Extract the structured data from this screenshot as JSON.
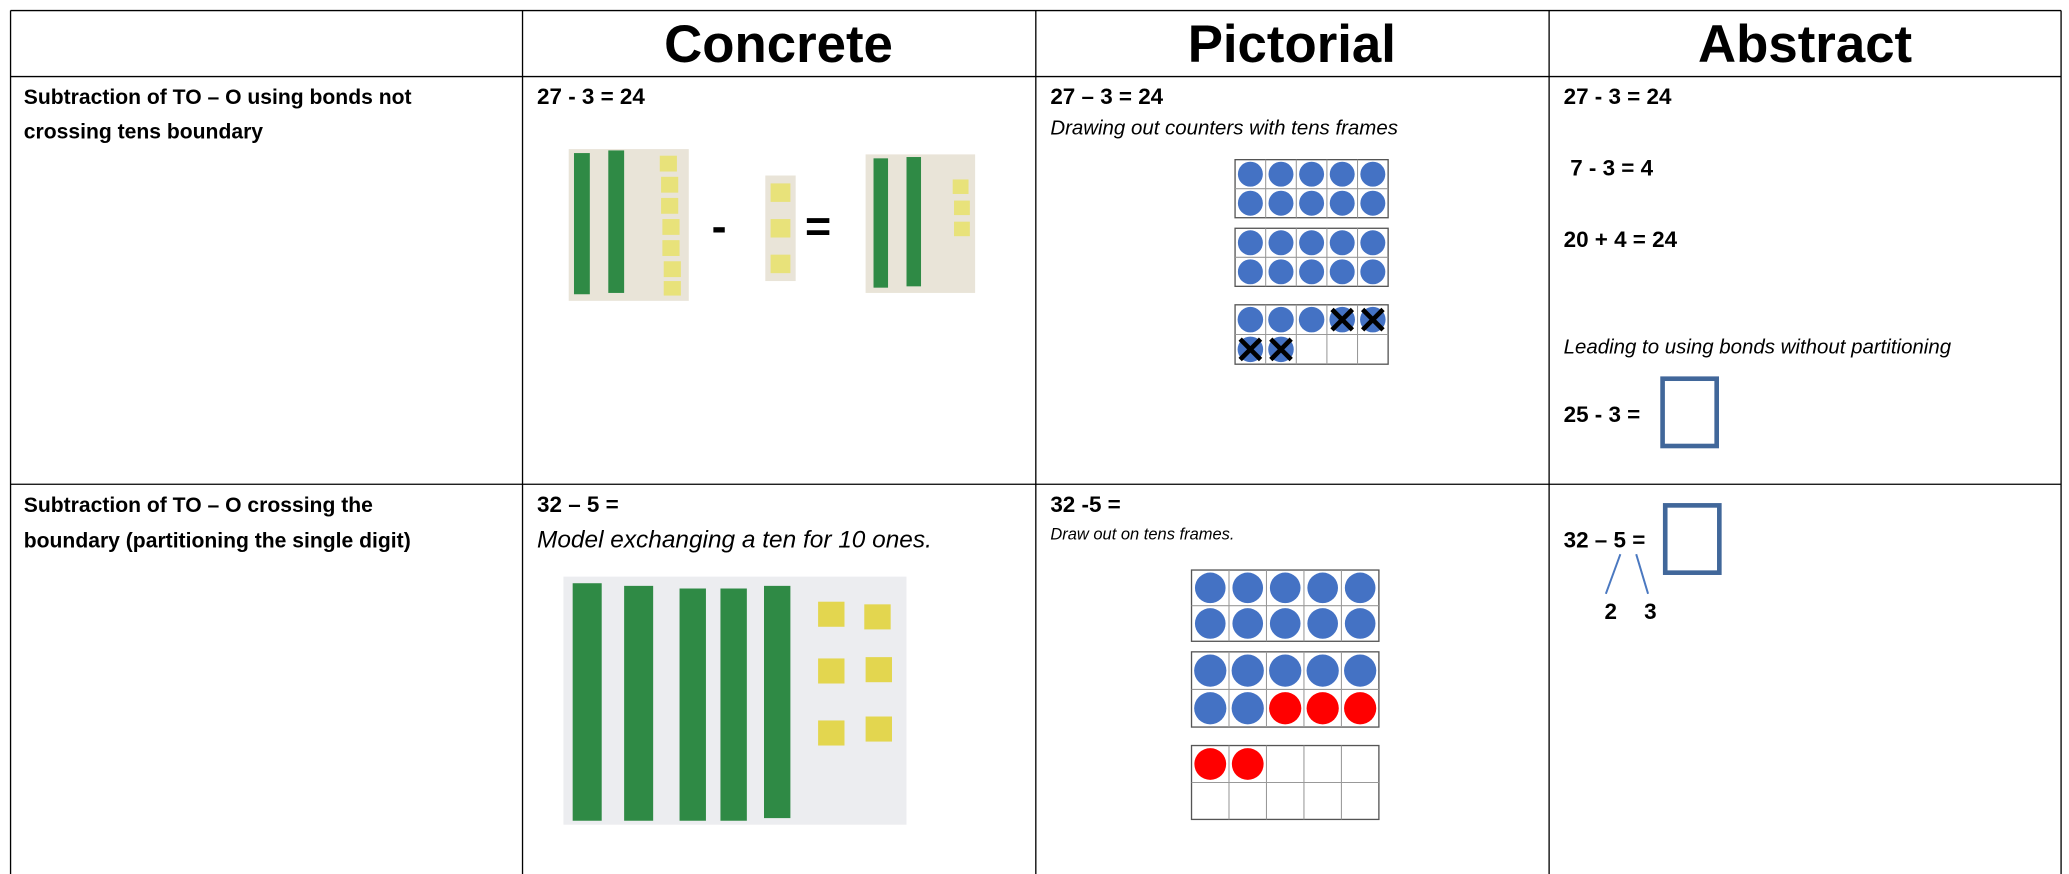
{
  "table": {
    "headers": [
      "Concrete",
      "Pictorial",
      "Abstract"
    ],
    "rows": [
      {
        "label": [
          "Subtraction of TO – O using bonds not",
          "crossing tens boundary"
        ],
        "concrete": {
          "equation": "27 - 3 = 24",
          "symbols": [
            "-",
            "="
          ]
        },
        "pictorial": {
          "equation": "27 – 3 = 24",
          "note": "Drawing out counters with tens frames"
        },
        "abstract": {
          "lines": [
            "27 - 3 = 24",
            "7 - 3 = 4",
            "20 + 4 = 24"
          ],
          "note": "Leading to using bonds without partitioning",
          "equation": "25 - 3 ="
        }
      },
      {
        "label": [
          "Subtraction of TO – O crossing the",
          "boundary (partitioning the single digit)"
        ],
        "concrete": {
          "equation": "32 – 5 =",
          "note": "Model exchanging a ten for 10 ones."
        },
        "pictorial": {
          "equation": "32 -5 =",
          "note": "Draw out on tens frames."
        },
        "abstract": {
          "equation": "32 – 5 =",
          "parts": [
            "2",
            "3"
          ]
        }
      }
    ]
  }
}
